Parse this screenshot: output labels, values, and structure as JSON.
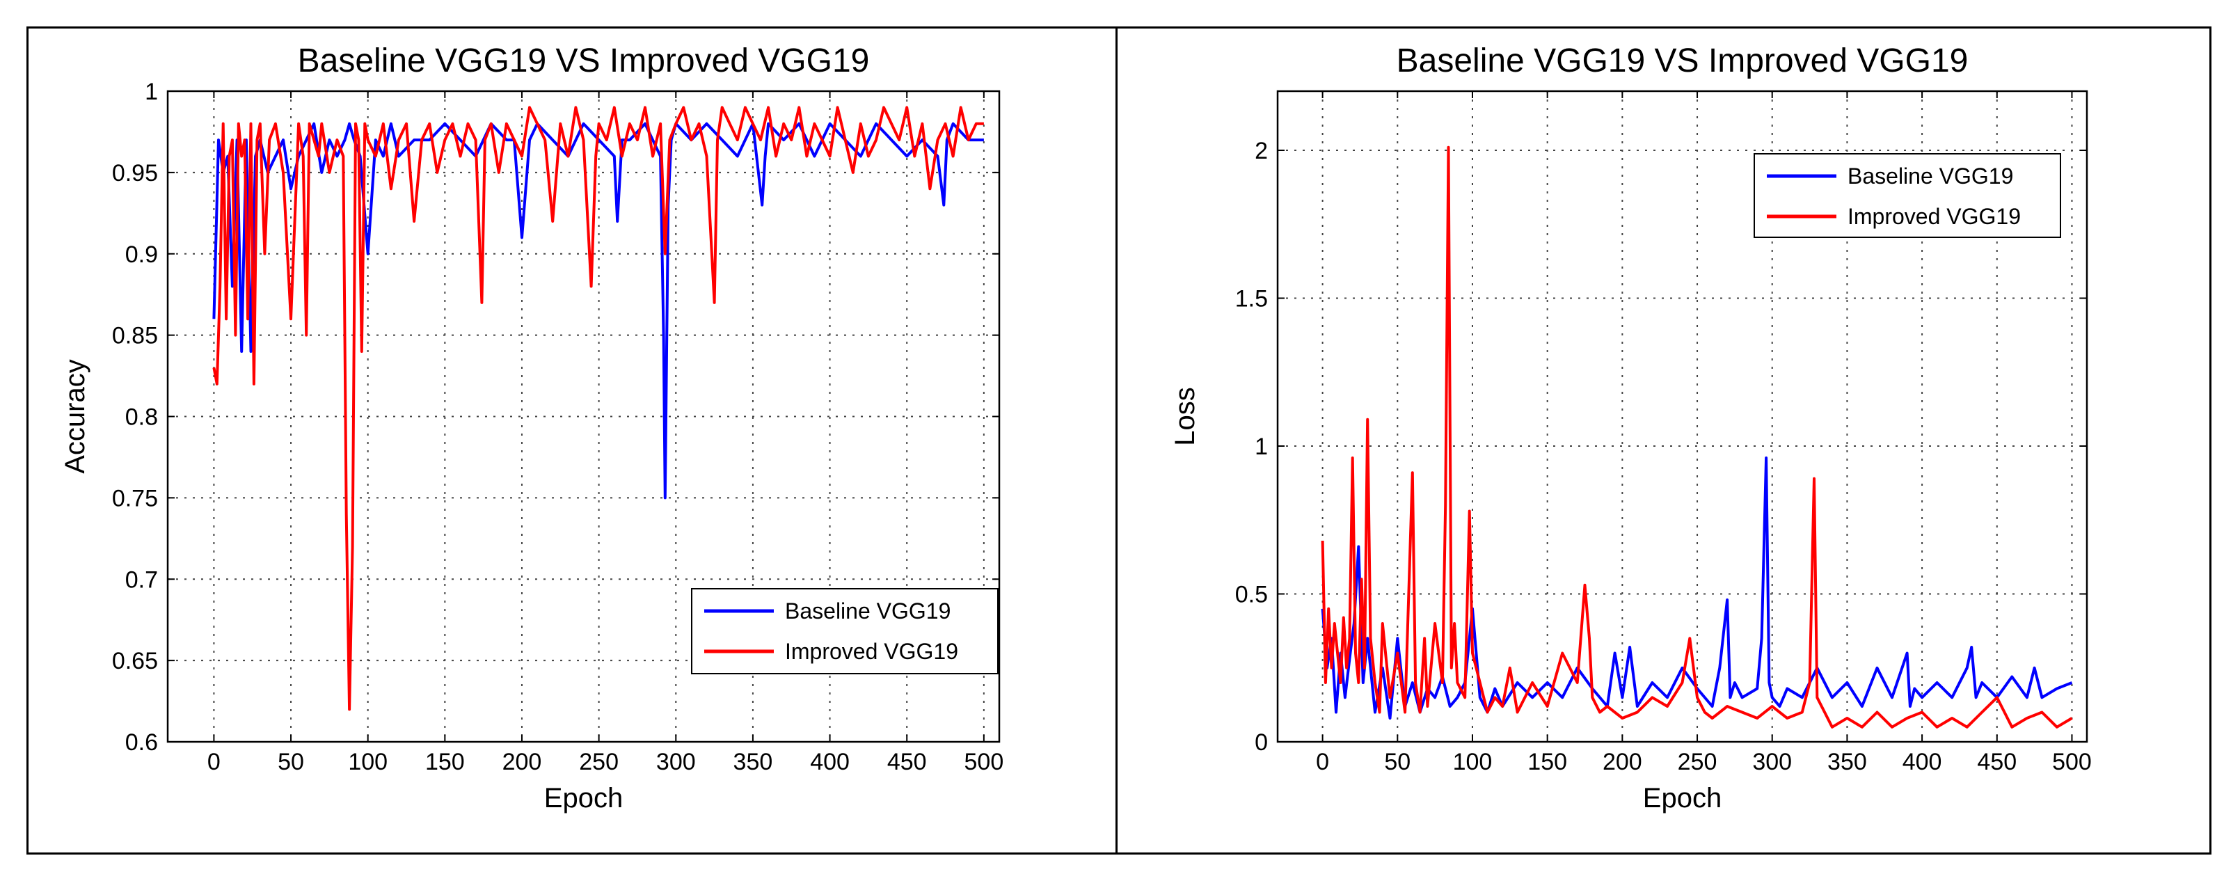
{
  "chart_data": [
    {
      "type": "line",
      "title": "Baseline VGG19 VS Improved VGG19",
      "xlabel": "Epoch",
      "ylabel": "Accuracy",
      "xlim": [
        -30,
        510
      ],
      "ylim": [
        0.6,
        1.0
      ],
      "x_ticks": [
        0,
        50,
        100,
        150,
        200,
        250,
        300,
        350,
        400,
        450,
        500
      ],
      "y_ticks": [
        0.6,
        0.65,
        0.7,
        0.75,
        0.8,
        0.85,
        0.9,
        0.95,
        1
      ],
      "x_tick_labels": [
        "0",
        "50",
        "100",
        "150",
        "200",
        "250",
        "300",
        "350",
        "400",
        "450",
        "500"
      ],
      "y_tick_labels": [
        "0.6",
        "0.65",
        "0.7",
        "0.75",
        "0.8",
        "0.85",
        "0.9",
        "0.95",
        "1"
      ],
      "grid": true,
      "legend_position": "bottom-right",
      "series": [
        {
          "name": "Baseline VGG19",
          "color": "#0000ff",
          "x": [
            0,
            3,
            6,
            9,
            12,
            15,
            18,
            21,
            24,
            27,
            30,
            35,
            40,
            45,
            50,
            55,
            60,
            65,
            70,
            75,
            80,
            85,
            88,
            91,
            95,
            100,
            105,
            110,
            115,
            120,
            130,
            140,
            150,
            160,
            170,
            180,
            190,
            195,
            200,
            205,
            210,
            220,
            230,
            240,
            250,
            260,
            262,
            265,
            270,
            280,
            290,
            292,
            293,
            295,
            297,
            300,
            310,
            320,
            330,
            340,
            350,
            356,
            358,
            360,
            370,
            380,
            390,
            400,
            410,
            420,
            430,
            440,
            450,
            460,
            470,
            474,
            476,
            480,
            490,
            500
          ],
          "values": [
            0.86,
            0.97,
            0.95,
            0.96,
            0.88,
            0.97,
            0.84,
            0.97,
            0.84,
            0.96,
            0.97,
            0.95,
            0.96,
            0.97,
            0.94,
            0.96,
            0.97,
            0.98,
            0.95,
            0.97,
            0.96,
            0.97,
            0.98,
            0.97,
            0.96,
            0.9,
            0.97,
            0.96,
            0.98,
            0.96,
            0.97,
            0.97,
            0.98,
            0.97,
            0.96,
            0.98,
            0.97,
            0.97,
            0.91,
            0.97,
            0.98,
            0.97,
            0.96,
            0.98,
            0.97,
            0.96,
            0.92,
            0.97,
            0.97,
            0.98,
            0.96,
            0.85,
            0.75,
            0.93,
            0.97,
            0.98,
            0.97,
            0.98,
            0.97,
            0.96,
            0.98,
            0.93,
            0.96,
            0.98,
            0.97,
            0.98,
            0.96,
            0.98,
            0.97,
            0.96,
            0.98,
            0.97,
            0.96,
            0.97,
            0.96,
            0.93,
            0.97,
            0.98,
            0.97,
            0.97
          ]
        },
        {
          "name": "Improved VGG19",
          "color": "#ff0000",
          "x": [
            0,
            2,
            4,
            6,
            8,
            10,
            12,
            14,
            16,
            18,
            20,
            22,
            24,
            26,
            28,
            30,
            33,
            36,
            40,
            45,
            50,
            55,
            58,
            60,
            62,
            65,
            68,
            70,
            75,
            80,
            84,
            86,
            88,
            90,
            92,
            94,
            96,
            98,
            100,
            105,
            110,
            115,
            120,
            125,
            130,
            135,
            140,
            145,
            150,
            155,
            160,
            165,
            170,
            174,
            176,
            180,
            185,
            190,
            195,
            200,
            205,
            210,
            215,
            220,
            225,
            230,
            235,
            240,
            245,
            248,
            250,
            255,
            260,
            265,
            270,
            275,
            280,
            285,
            290,
            293,
            296,
            300,
            305,
            310,
            315,
            320,
            325,
            327,
            330,
            335,
            340,
            345,
            350,
            355,
            360,
            365,
            370,
            375,
            380,
            385,
            390,
            395,
            400,
            405,
            410,
            415,
            420,
            425,
            430,
            435,
            440,
            445,
            450,
            455,
            460,
            465,
            470,
            475,
            480,
            485,
            490,
            495,
            500
          ],
          "values": [
            0.83,
            0.82,
            0.88,
            0.98,
            0.86,
            0.96,
            0.97,
            0.85,
            0.98,
            0.96,
            0.97,
            0.86,
            0.98,
            0.82,
            0.97,
            0.98,
            0.9,
            0.97,
            0.98,
            0.95,
            0.86,
            0.98,
            0.96,
            0.85,
            0.98,
            0.97,
            0.96,
            0.98,
            0.95,
            0.97,
            0.96,
            0.74,
            0.62,
            0.72,
            0.98,
            0.97,
            0.84,
            0.98,
            0.97,
            0.96,
            0.98,
            0.94,
            0.97,
            0.98,
            0.92,
            0.97,
            0.98,
            0.95,
            0.97,
            0.98,
            0.96,
            0.98,
            0.97,
            0.87,
            0.97,
            0.98,
            0.95,
            0.98,
            0.97,
            0.96,
            0.99,
            0.98,
            0.97,
            0.92,
            0.98,
            0.96,
            0.99,
            0.97,
            0.88,
            0.96,
            0.98,
            0.97,
            0.99,
            0.96,
            0.98,
            0.97,
            0.99,
            0.96,
            0.98,
            0.9,
            0.97,
            0.98,
            0.99,
            0.97,
            0.98,
            0.96,
            0.87,
            0.97,
            0.99,
            0.98,
            0.97,
            0.99,
            0.98,
            0.97,
            0.99,
            0.96,
            0.98,
            0.97,
            0.99,
            0.96,
            0.98,
            0.97,
            0.96,
            0.99,
            0.97,
            0.95,
            0.98,
            0.96,
            0.97,
            0.99,
            0.98,
            0.97,
            0.99,
            0.96,
            0.98,
            0.94,
            0.97,
            0.98,
            0.96,
            0.99,
            0.97,
            0.98,
            0.98
          ]
        }
      ]
    },
    {
      "type": "line",
      "title": "Baseline VGG19 VS Improved VGG19",
      "xlabel": "Epoch",
      "ylabel": "Loss",
      "xlim": [
        -30,
        510
      ],
      "ylim": [
        0,
        2.2
      ],
      "x_ticks": [
        0,
        50,
        100,
        150,
        200,
        250,
        300,
        350,
        400,
        450,
        500
      ],
      "y_ticks": [
        0,
        0.5,
        1,
        1.5,
        2
      ],
      "x_tick_labels": [
        "0",
        "50",
        "100",
        "150",
        "200",
        "250",
        "300",
        "350",
        "400",
        "450",
        "500"
      ],
      "y_tick_labels": [
        "0",
        "0.5",
        "1",
        "1.5",
        "2"
      ],
      "grid": true,
      "legend_position": "top-right",
      "series": [
        {
          "name": "Baseline VGG19",
          "color": "#0000ff",
          "x": [
            0,
            3,
            6,
            9,
            12,
            15,
            18,
            21,
            24,
            27,
            30,
            35,
            40,
            45,
            50,
            55,
            60,
            65,
            70,
            75,
            80,
            85,
            90,
            95,
            100,
            105,
            110,
            115,
            120,
            130,
            140,
            150,
            160,
            170,
            180,
            190,
            195,
            200,
            205,
            210,
            220,
            230,
            240,
            250,
            260,
            265,
            270,
            272,
            275,
            280,
            290,
            293,
            296,
            298,
            300,
            305,
            310,
            320,
            330,
            340,
            350,
            360,
            370,
            380,
            390,
            392,
            395,
            400,
            410,
            420,
            430,
            433,
            436,
            440,
            450,
            460,
            470,
            475,
            480,
            490,
            500
          ],
          "values": [
            0.45,
            0.25,
            0.35,
            0.1,
            0.3,
            0.15,
            0.28,
            0.4,
            0.66,
            0.2,
            0.35,
            0.1,
            0.25,
            0.08,
            0.35,
            0.12,
            0.2,
            0.1,
            0.18,
            0.15,
            0.22,
            0.12,
            0.15,
            0.2,
            0.45,
            0.15,
            0.1,
            0.18,
            0.12,
            0.2,
            0.15,
            0.2,
            0.15,
            0.25,
            0.18,
            0.12,
            0.3,
            0.15,
            0.32,
            0.12,
            0.2,
            0.15,
            0.25,
            0.18,
            0.12,
            0.25,
            0.48,
            0.15,
            0.2,
            0.15,
            0.18,
            0.35,
            0.96,
            0.2,
            0.15,
            0.12,
            0.18,
            0.15,
            0.25,
            0.15,
            0.2,
            0.12,
            0.25,
            0.15,
            0.3,
            0.12,
            0.18,
            0.15,
            0.2,
            0.15,
            0.25,
            0.32,
            0.15,
            0.2,
            0.15,
            0.22,
            0.15,
            0.25,
            0.15,
            0.18,
            0.2
          ]
        },
        {
          "name": "Improved VGG19",
          "color": "#ff0000",
          "x": [
            0,
            2,
            4,
            6,
            8,
            10,
            12,
            14,
            16,
            18,
            20,
            22,
            24,
            26,
            28,
            30,
            32,
            35,
            38,
            40,
            45,
            50,
            55,
            60,
            62,
            65,
            68,
            70,
            75,
            80,
            82,
            84,
            86,
            88,
            90,
            95,
            98,
            100,
            105,
            110,
            115,
            120,
            125,
            130,
            140,
            150,
            160,
            170,
            175,
            178,
            180,
            185,
            190,
            200,
            210,
            220,
            230,
            240,
            245,
            250,
            255,
            260,
            270,
            280,
            290,
            300,
            310,
            320,
            325,
            328,
            330,
            335,
            340,
            350,
            360,
            370,
            380,
            390,
            400,
            410,
            420,
            430,
            440,
            450,
            460,
            470,
            480,
            490,
            500
          ],
          "values": [
            0.68,
            0.2,
            0.45,
            0.25,
            0.4,
            0.3,
            0.2,
            0.42,
            0.25,
            0.35,
            0.96,
            0.3,
            0.2,
            0.55,
            0.25,
            1.09,
            0.35,
            0.2,
            0.1,
            0.4,
            0.15,
            0.3,
            0.1,
            0.91,
            0.2,
            0.1,
            0.35,
            0.12,
            0.4,
            0.2,
            0.8,
            2.01,
            0.25,
            0.4,
            0.2,
            0.15,
            0.78,
            0.3,
            0.2,
            0.1,
            0.15,
            0.12,
            0.25,
            0.1,
            0.2,
            0.12,
            0.3,
            0.2,
            0.53,
            0.35,
            0.15,
            0.1,
            0.12,
            0.08,
            0.1,
            0.15,
            0.12,
            0.2,
            0.35,
            0.15,
            0.1,
            0.08,
            0.12,
            0.1,
            0.08,
            0.12,
            0.08,
            0.1,
            0.2,
            0.89,
            0.15,
            0.1,
            0.05,
            0.08,
            0.05,
            0.1,
            0.05,
            0.08,
            0.1,
            0.05,
            0.08,
            0.05,
            0.1,
            0.15,
            0.05,
            0.08,
            0.1,
            0.05,
            0.08
          ]
        }
      ]
    }
  ]
}
